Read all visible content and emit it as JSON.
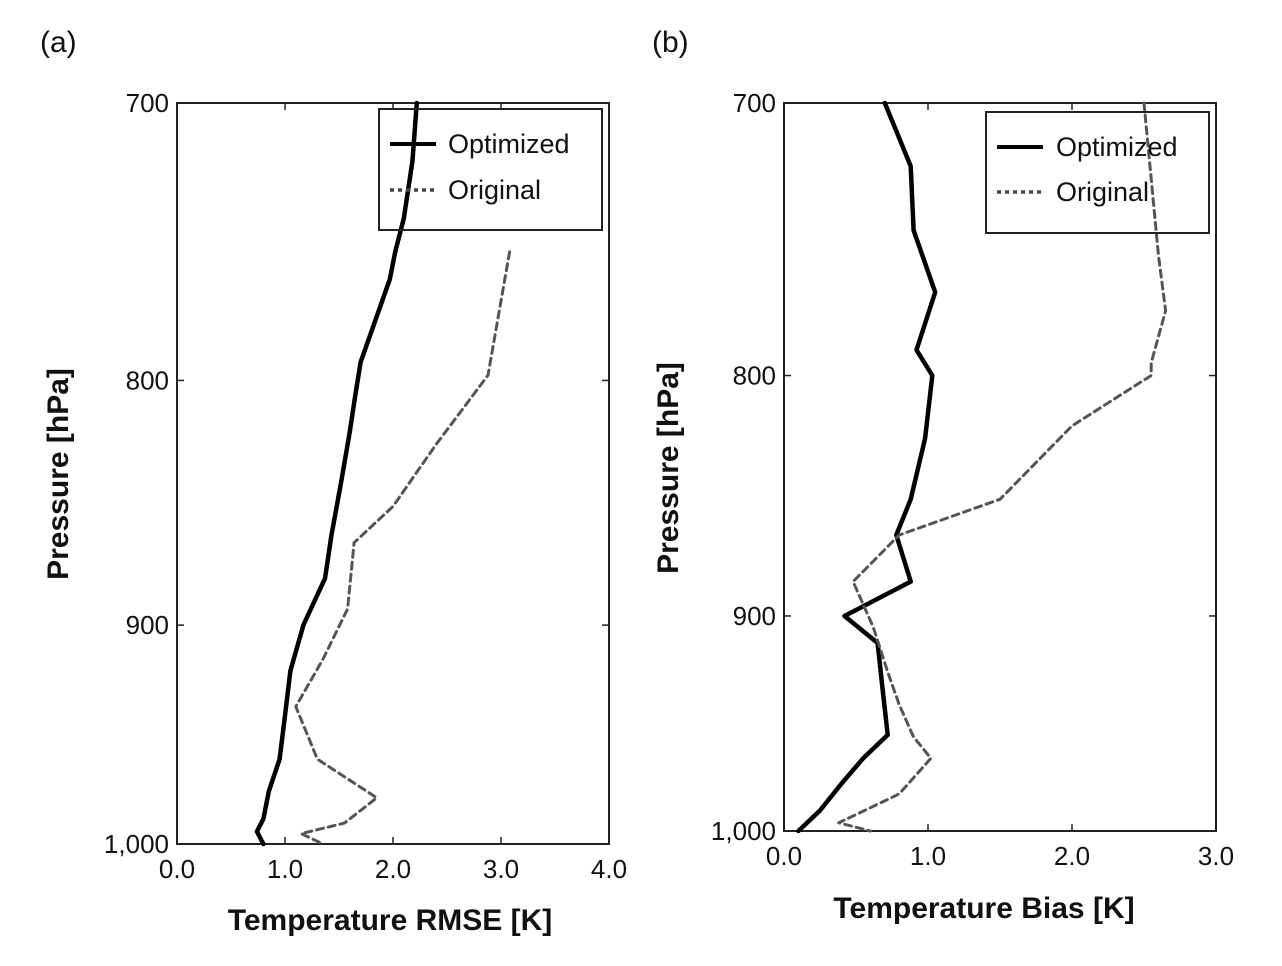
{
  "figure": {
    "panels": [
      {
        "letter": "(a)"
      },
      {
        "letter": "(b)"
      }
    ]
  },
  "chart_data": [
    {
      "type": "line",
      "panel": "(a)",
      "xlabel": "Temperature RMSE [K]",
      "ylabel": "Pressure [hPa]",
      "xlim": [
        0.0,
        4.0
      ],
      "ylim": [
        1000,
        700
      ],
      "y_scale": "log",
      "xticks": [
        "0.0",
        "1.0",
        "2.0",
        "3.0",
        "4.0"
      ],
      "yticks": [
        "700",
        "800",
        "900",
        "1,000"
      ],
      "ytick_values": [
        700,
        800,
        900,
        1000
      ],
      "legend_position": "top-right",
      "series": [
        {
          "name": "Optimized",
          "style": "solid",
          "color": "#000000",
          "points": [
            [
              2.22,
              700
            ],
            [
              2.18,
              720
            ],
            [
              2.1,
              740
            ],
            [
              2.02,
              752
            ],
            [
              1.97,
              762
            ],
            [
              1.83,
              778
            ],
            [
              1.7,
              793
            ],
            [
              1.65,
              806
            ],
            [
              1.6,
              820
            ],
            [
              1.52,
              840
            ],
            [
              1.43,
              862
            ],
            [
              1.37,
              880
            ],
            [
              1.17,
              900
            ],
            [
              1.05,
              920
            ],
            [
              1.0,
              940
            ],
            [
              0.95,
              960
            ],
            [
              0.85,
              975
            ],
            [
              0.8,
              988
            ],
            [
              0.74,
              994
            ],
            [
              0.8,
              1000
            ]
          ]
        },
        {
          "name": "Original",
          "style": "dotted",
          "color": "#555555",
          "points": [
            [
              3.08,
              752
            ],
            [
              2.88,
              798
            ],
            [
              2.4,
              825
            ],
            [
              2.0,
              850
            ],
            [
              1.64,
              865
            ],
            [
              1.58,
              893
            ],
            [
              1.35,
              915
            ],
            [
              1.1,
              936
            ],
            [
              1.3,
              960
            ],
            [
              1.85,
              978
            ],
            [
              1.55,
              990
            ],
            [
              1.15,
              995
            ],
            [
              1.35,
              1000
            ]
          ]
        }
      ]
    },
    {
      "type": "line",
      "panel": "(b)",
      "xlabel": "Temperature Bias [K]",
      "ylabel": "Pressure [hPa]",
      "xlim": [
        0.0,
        3.0
      ],
      "ylim": [
        1000,
        700
      ],
      "y_scale": "log",
      "xticks": [
        "0.0",
        "1.0",
        "2.0",
        "3.0"
      ],
      "yticks": [
        "700",
        "800",
        "900",
        "1,000"
      ],
      "ytick_values": [
        700,
        800,
        900,
        1000
      ],
      "legend_position": "top-right",
      "series": [
        {
          "name": "Optimized",
          "style": "solid",
          "color": "#000000",
          "points": [
            [
              0.7,
              700
            ],
            [
              0.88,
              722
            ],
            [
              0.9,
              745
            ],
            [
              1.05,
              768
            ],
            [
              0.92,
              790
            ],
            [
              1.03,
              800
            ],
            [
              0.98,
              825
            ],
            [
              0.88,
              850
            ],
            [
              0.78,
              865
            ],
            [
              0.88,
              885
            ],
            [
              0.42,
              900
            ],
            [
              0.65,
              912
            ],
            [
              0.68,
              930
            ],
            [
              0.72,
              954
            ],
            [
              0.55,
              965
            ],
            [
              0.4,
              977
            ],
            [
              0.25,
              990
            ],
            [
              0.1,
              1000
            ]
          ]
        },
        {
          "name": "Original",
          "style": "dotted",
          "color": "#555555",
          "points": [
            [
              2.5,
              700
            ],
            [
              2.6,
              754
            ],
            [
              2.65,
              775
            ],
            [
              2.55,
              795
            ],
            [
              2.55,
              800
            ],
            [
              2.0,
              820
            ],
            [
              1.5,
              850
            ],
            [
              0.8,
              865
            ],
            [
              0.48,
              885
            ],
            [
              0.62,
              905
            ],
            [
              0.72,
              925
            ],
            [
              0.8,
              940
            ],
            [
              0.9,
              955
            ],
            [
              1.02,
              965
            ],
            [
              0.8,
              982
            ],
            [
              0.5,
              992
            ],
            [
              0.38,
              996
            ],
            [
              0.6,
              1000
            ]
          ]
        }
      ]
    }
  ]
}
